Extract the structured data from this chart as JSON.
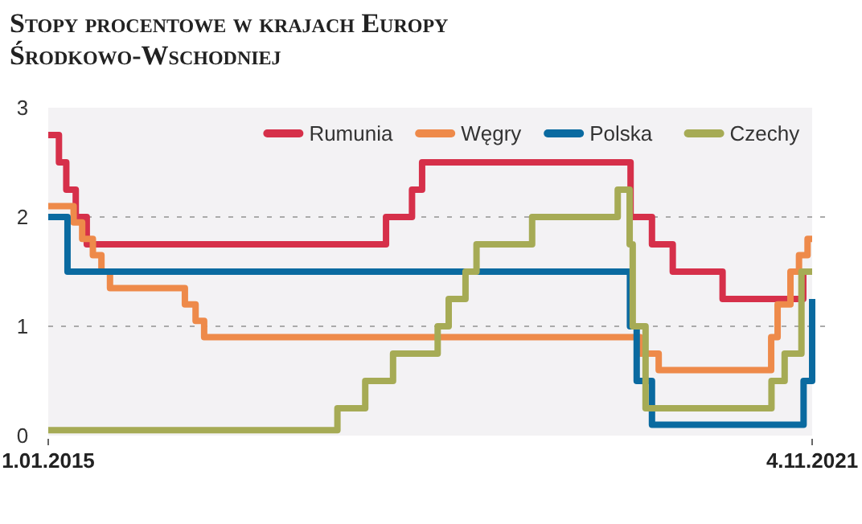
{
  "chart_data": {
    "type": "step",
    "title": "Stopy procentowe w krajach Europy Środkowo-Wschodniej",
    "xlim": [
      "2015-01-01",
      "2021-11-04"
    ],
    "xticks": [
      {
        "value": "2015-01-01",
        "label": "1.01.2015"
      },
      {
        "value": "2021-11-04",
        "label": "4.11.2021"
      }
    ],
    "ylim": [
      0,
      3
    ],
    "yticks": [
      0,
      1,
      2,
      3
    ],
    "grid": "y",
    "legend": "top right",
    "line_style": "solid",
    "marker": "none",
    "series": [
      {
        "name": "Rumunia",
        "color": "#d6304a",
        "x": [
          "2015-01-01",
          "2015-02-05",
          "2015-03-01",
          "2015-04-01",
          "2015-05-07",
          "2018-01-10",
          "2018-04-05",
          "2018-05-08",
          "2020-03-20",
          "2020-05-29",
          "2020-08-05",
          "2021-01-15",
          "2021-10-06",
          "2021-11-04"
        ],
        "values": [
          2.75,
          2.5,
          2.25,
          2.0,
          1.75,
          2.0,
          2.25,
          2.5,
          2.0,
          1.75,
          1.5,
          1.25,
          1.5,
          1.5
        ]
      },
      {
        "name": "Węgry",
        "color": "#ee8a4a",
        "x": [
          "2015-01-01",
          "2015-03-25",
          "2015-04-22",
          "2015-05-27",
          "2015-06-24",
          "2015-07-22",
          "2016-03-23",
          "2016-04-27",
          "2016-05-25",
          "2020-04-20",
          "2020-06-20",
          "2021-06-23",
          "2021-07-14",
          "2021-08-25",
          "2021-09-22",
          "2021-10-20",
          "2021-11-04"
        ],
        "values": [
          2.1,
          1.95,
          1.8,
          1.65,
          1.5,
          1.35,
          1.2,
          1.05,
          0.9,
          0.75,
          0.6,
          0.9,
          1.2,
          1.5,
          1.65,
          1.8,
          1.8
        ]
      },
      {
        "name": "Polska",
        "color": "#0a6aa0",
        "x": [
          "2015-01-01",
          "2015-03-05",
          "2020-03-18",
          "2020-04-09",
          "2020-05-29",
          "2021-10-07",
          "2021-11-04"
        ],
        "values": [
          2.0,
          1.5,
          1.0,
          0.5,
          0.1,
          0.5,
          1.25
        ]
      },
      {
        "name": "Czechy",
        "color": "#a6ab55",
        "x": [
          "2015-01-01",
          "2017-08-04",
          "2017-11-03",
          "2018-02-02",
          "2018-06-28",
          "2018-08-03",
          "2018-09-27",
          "2018-11-02",
          "2019-05-03",
          "2020-02-07",
          "2020-03-17",
          "2020-03-27",
          "2020-05-08",
          "2021-06-24",
          "2021-08-06",
          "2021-09-30",
          "2021-11-04"
        ],
        "values": [
          0.05,
          0.25,
          0.5,
          0.75,
          1.0,
          1.25,
          1.5,
          1.75,
          2.0,
          2.25,
          1.75,
          1.0,
          0.25,
          0.5,
          0.75,
          1.5,
          1.5
        ]
      }
    ]
  }
}
